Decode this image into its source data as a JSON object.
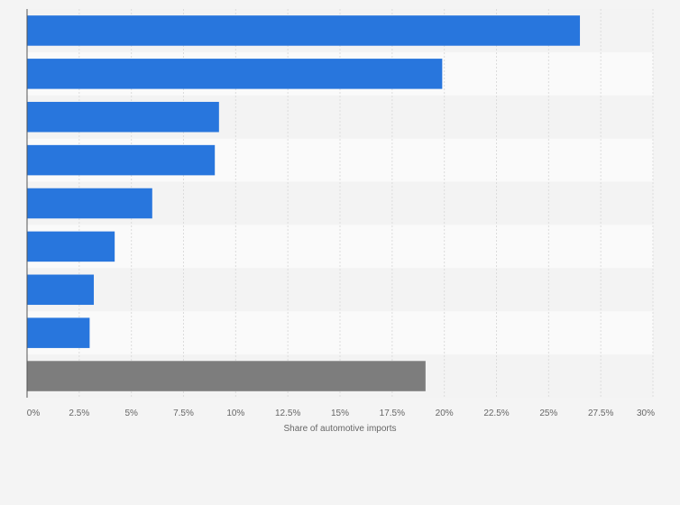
{
  "chart_data": {
    "type": "bar",
    "orientation": "horizontal",
    "title": "",
    "xlabel": "Share of automotive imports",
    "ylabel": "",
    "categories": [
      "",
      "",
      "",
      "",
      "",
      "",
      "",
      "",
      ""
    ],
    "values": [
      26.5,
      19.9,
      9.2,
      9.0,
      6.0,
      4.2,
      3.2,
      3.0,
      19.1
    ],
    "bar_colors": [
      "#2876dd",
      "#2876dd",
      "#2876dd",
      "#2876dd",
      "#2876dd",
      "#2876dd",
      "#2876dd",
      "#2876dd",
      "#7d7d7d"
    ],
    "xlim": [
      0,
      30
    ],
    "xticks": [
      0,
      2.5,
      5,
      7.5,
      10,
      12.5,
      15,
      17.5,
      20,
      22.5,
      25,
      27.5,
      30
    ],
    "xtick_labels": [
      "0%",
      "2.5%",
      "5%",
      "7.5%",
      "10%",
      "12.5%",
      "15%",
      "17.5%",
      "20%",
      "22.5%",
      "25%",
      "27.5%",
      "30%"
    ],
    "grid": true,
    "legend": "none"
  },
  "colors": {
    "background": "#f4f4f4",
    "band_light": "#fafafa",
    "band_dark": "#f3f3f3",
    "gridline": "#dcdcdc",
    "axis": "#555555"
  }
}
